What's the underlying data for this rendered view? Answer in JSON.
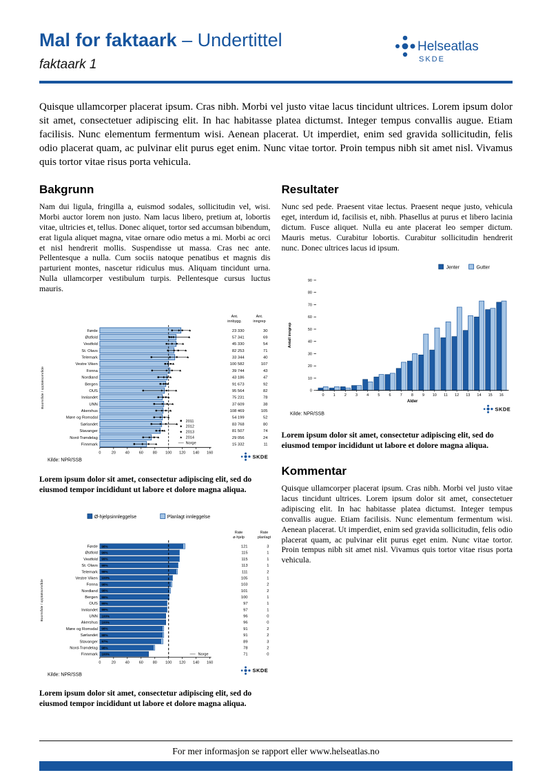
{
  "colors": {
    "brand": "#17559e",
    "bar_dark": "#1d5ba4",
    "bar_light": "#a6c5e5",
    "bar_dark_border": "#0d3a6b",
    "marker_black": "#000000",
    "norge_gray": "#999999"
  },
  "header": {
    "title_bold": "Mal for faktaark",
    "title_sep": " – ",
    "subtitle": "Undertittel",
    "doc_label": "faktaark 1",
    "logo": {
      "brand": "Helseatlas",
      "org": "SKDE"
    }
  },
  "intro": "Quisque ullamcorper placerat ipsum. Cras nibh. Morbi vel justo vitae lacus tincidunt ultrices. Lorem ipsum dolor sit amet, consectetuer adipiscing elit. In hac habitasse platea dictumst. Integer tempus convallis augue. Etiam facilisis. Nunc elementum fermentum wisi. Aenean placerat. Ut imperdiet, enim sed gravida sollicitudin, felis odio placerat quam, ac pulvinar elit purus eget enim. Nunc vitae tortor. Proin tempus nibh sit amet nisl. Vivamus quis tortor vitae risus porta vehicula.",
  "sections": {
    "bakgrunn": {
      "heading": "Bakgrunn",
      "body": "Nam dui ligula, fringilla a, euismod sodales, sollicitudin vel, wisi. Morbi auctor lorem non justo. Nam lacus libero, pretium at, lobortis vitae, ultricies et, tellus. Donec aliquet, tortor sed accumsan bibendum, erat ligula aliquet magna, vitae ornare odio metus a mi. Morbi ac orci et nisl hendrerit mollis. Suspendisse ut massa. Cras nec ante. Pellentesque a nulla. Cum sociis natoque penatibus et magnis dis parturient montes, nascetur ridiculus mus. Aliquam tincidunt urna. Nulla ullamcorper vestibulum turpis. Pellentesque cursus luctus mauris."
    },
    "resultater": {
      "heading": "Resultater",
      "body": "Nunc sed pede. Praesent vitae lectus. Praesent neque justo, vehicula eget, interdum id, facilisis et, nibh. Phasellus at purus et libero lacinia dictum. Fusce aliquet. Nulla eu ante placerat leo semper dictum. Mauris metus. Curabitur lobortis. Curabitur sollicitudin hendrerit nunc. Donec ultrices lacus id ipsum."
    },
    "kommentar": {
      "heading": "Kommentar",
      "body": "Quisque ullamcorper placerat ipsum. Cras nibh. Morbi vel justo vitae lacus tincidunt ultrices. Lorem ipsum dolor sit amet, consectetuer adipiscing elit. In hac habitasse platea dictumst. Integer tempus convallis augue. Etiam facilisis. Nunc elementum fermentum wisi. Aenean placerat. Ut imperdiet, enim sed gravida sollicitudin, felis odio placerat quam, ac pulvinar elit purus eget enim. Nunc vitae tortor. Proin tempus nibh sit amet nisl. Vivamus quis tortor vitae risus porta vehicula."
    }
  },
  "captions": {
    "chart1": "Lorem ipsum dolor sit amet, consectetur adipiscing elit, sed do eiusmod tempor incididunt ut labore et dolore magna aliqua.",
    "chart2": "Lorem ipsum dolor sit amet, consectetur adipiscing elit, sed do eiusmod tempor incididunt ut labore et dolore magna aliqua.",
    "chart3": "Lorem ipsum dolor sit amet, consectetur adipiscing elit, sed do eiusmod tempor incididunt ut labore et dolore magna aliqua."
  },
  "footer": {
    "text": "For mer informasjon se rapport eller www.helseatlas.no"
  },
  "chart_data": [
    {
      "id": "rate-per-boomrade",
      "type": "bar",
      "orientation": "horizontal",
      "ylabel": "Boområde / opptaksområde",
      "categories": [
        "Førde",
        "Østfold",
        "Vestfold",
        "St. Olavs",
        "Telemark",
        "Vestre Viken",
        "Fonna",
        "Nordland",
        "Bergen",
        "OUS",
        "Innlandet",
        "UNN",
        "Akershus",
        "Møre og Romsdal",
        "Sørlandet",
        "Stavanger",
        "Nord-Trøndelag",
        "Finnmark"
      ],
      "values": [
        118,
        111,
        111,
        108,
        109,
        100,
        102,
        98,
        96,
        94,
        91,
        93,
        92,
        91,
        90,
        88,
        75,
        68
      ],
      "point_years": [
        "2011",
        "2012",
        "2013",
        "2014"
      ],
      "points": [
        [
          105,
          115,
          120,
          131
        ],
        [
          101,
          104,
          107,
          130
        ],
        [
          97,
          105,
          112,
          121
        ],
        [
          99,
          108,
          114,
          125
        ],
        [
          75,
          102,
          112,
          128
        ],
        [
          95,
          99,
          103,
          107
        ],
        [
          76,
          97,
          105,
          117
        ],
        [
          85,
          93,
          98,
          103
        ],
        [
          88,
          93,
          96,
          99
        ],
        [
          63,
          90,
          97,
          111
        ],
        [
          85,
          92,
          96,
          100
        ],
        [
          79,
          91,
          98,
          106
        ],
        [
          82,
          90,
          96,
          103
        ],
        [
          79,
          88,
          94,
          100
        ],
        [
          75,
          88,
          96,
          112
        ],
        [
          82,
          87,
          91,
          94
        ],
        [
          63,
          72,
          79,
          85
        ],
        [
          50,
          62,
          71,
          82
        ]
      ],
      "legend": [
        {
          "marker": "square",
          "label": "2011"
        },
        {
          "marker": "diamond",
          "label": "2012"
        },
        {
          "marker": "circle",
          "label": "2013"
        },
        {
          "marker": "triangle",
          "label": "2014"
        },
        {
          "marker": "dash",
          "label": "Norge"
        }
      ],
      "table": {
        "headers": [
          [
            "Ant.",
            "innbygg."
          ],
          [
            "Ant.",
            "inngrep"
          ]
        ],
        "innbygg": [
          "23 330",
          "57 341",
          "45 330",
          "82 253",
          "33 344",
          "100 582",
          "39 744",
          "43 186",
          "91 673",
          "95 564",
          "75 231",
          "37 609",
          "108 469",
          "54 199",
          "83 768",
          "81 507",
          "29 056",
          "15 332"
        ],
        "inngrep": [
          30,
          69,
          54,
          71,
          40,
          107,
          43,
          47,
          92,
          82,
          78,
          38,
          105,
          52,
          80,
          74,
          24,
          11
        ]
      },
      "xlim": [
        0,
        160
      ],
      "xticks": [
        0,
        20,
        40,
        60,
        80,
        100,
        120,
        140,
        160
      ],
      "ref_line": {
        "value": 100,
        "label": "Norge"
      },
      "source": "Kilde: NPR/SSB"
    },
    {
      "id": "inngrep-per-alder",
      "type": "bar",
      "categories": [
        "0",
        "1",
        "2",
        "3",
        "4",
        "5",
        "6",
        "7",
        "8",
        "9",
        "10",
        "11",
        "12",
        "13",
        "14",
        "15",
        "16"
      ],
      "series": [
        {
          "name": "Jenter",
          "color": "#1d5ba4",
          "values": [
            2,
            2,
            3,
            4,
            9,
            11,
            13,
            18,
            24,
            29,
            33,
            43,
            44,
            49,
            60,
            66,
            72
          ]
        },
        {
          "name": "Gutter",
          "color": "#a6c5e5",
          "values": [
            3,
            3,
            2,
            4,
            7,
            13,
            14,
            23,
            30,
            46,
            51,
            56,
            68,
            61,
            73,
            67,
            73
          ]
        }
      ],
      "xlabel": "Alder",
      "ylabel": "Antall inngrep",
      "ylim": [
        0,
        90
      ],
      "yticks": [
        0,
        10,
        20,
        30,
        40,
        50,
        60,
        70,
        80,
        90
      ],
      "legend_position": "top-right",
      "source": "Kilde: NPR/SSB"
    },
    {
      "id": "innleggelse-rater",
      "type": "stacked-bar",
      "orientation": "horizontal",
      "ylabel": "Boområde / opptaksområde",
      "categories": [
        "Førde",
        "Østfold",
        "Vestfold",
        "St. Olavs",
        "Telemark",
        "Vestre Viken",
        "Fonna",
        "Nordland",
        "Bergen",
        "OUS",
        "Innlandet",
        "UNN",
        "Akershus",
        "Møre og Romsdal",
        "Sørlandet",
        "Stavanger",
        "Nord-Trøndelag",
        "Finnmark"
      ],
      "series": [
        {
          "name": "Ø-hjelpsinnleggelse",
          "color": "#1d5ba4",
          "values": [
            121,
            115,
            115,
            113,
            111,
            105,
            103,
            101,
            100,
            97,
            97,
            96,
            96,
            91,
            91,
            89,
            78,
            71
          ]
        },
        {
          "name": "Planlagt innleggelse",
          "color": "#a6c5e5",
          "values": [
            3,
            1,
            1,
            1,
            2,
            1,
            2,
            2,
            1,
            1,
            1,
            0,
            0,
            2,
            2,
            3,
            2,
            0
          ]
        }
      ],
      "bar_labels": [
        "98%",
        "99%",
        "99%",
        "99%",
        "98%",
        "100%",
        "98%",
        "98%",
        "99%",
        "99%",
        "99%",
        "100%",
        "100%",
        "98%",
        "98%",
        "97%",
        "98%",
        "100%"
      ],
      "table": {
        "headers": [
          [
            "Rate",
            "ø-hjelp"
          ],
          [
            "Rate",
            "planlagt"
          ]
        ]
      },
      "xlim": [
        0,
        160
      ],
      "xticks": [
        0,
        20,
        40,
        60,
        80,
        100,
        120,
        140,
        160
      ],
      "ref_line": {
        "value": 100,
        "label": "Norge"
      },
      "source": "Kilde: NPR/SSB"
    }
  ]
}
